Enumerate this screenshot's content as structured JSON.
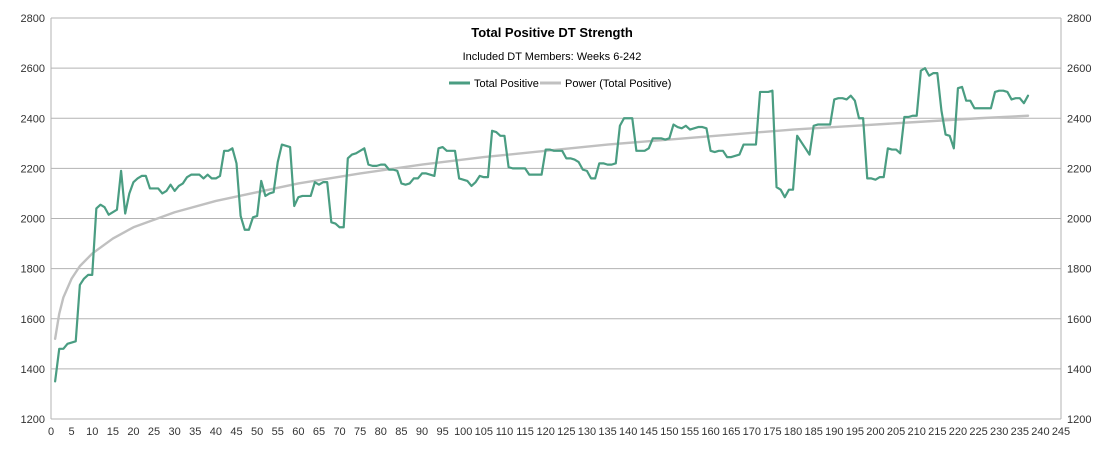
{
  "chart_data": {
    "type": "line",
    "title": "Total Positive DT Strength",
    "subtitle": "Included DT Members: Weeks 6-242",
    "xlabel": "",
    "ylabel": "",
    "xlim": [
      0,
      245
    ],
    "ylim": [
      1200,
      2800
    ],
    "x_ticks": [
      0,
      5,
      10,
      15,
      20,
      25,
      30,
      35,
      40,
      45,
      50,
      55,
      60,
      65,
      70,
      75,
      80,
      85,
      90,
      95,
      100,
      105,
      110,
      115,
      120,
      125,
      130,
      135,
      140,
      145,
      150,
      155,
      160,
      165,
      170,
      175,
      180,
      185,
      190,
      195,
      200,
      205,
      210,
      215,
      220,
      225,
      230,
      235,
      240,
      245
    ],
    "y_ticks": [
      1200,
      1400,
      1600,
      1800,
      2000,
      2200,
      2400,
      2600,
      2800
    ],
    "grid": "horizontal",
    "legend_position": "top-center",
    "series": [
      {
        "name": "Total Positive",
        "color": "#4a9d82",
        "points": [
          [
            1,
            1350
          ],
          [
            2,
            1480
          ],
          [
            3,
            1480
          ],
          [
            4,
            1500
          ],
          [
            5,
            1505
          ],
          [
            6,
            1510
          ],
          [
            7,
            1735
          ],
          [
            8,
            1760
          ],
          [
            9,
            1775
          ],
          [
            10,
            1775
          ],
          [
            11,
            2040
          ],
          [
            12,
            2055
          ],
          [
            13,
            2045
          ],
          [
            14,
            2015
          ],
          [
            15,
            2025
          ],
          [
            16,
            2035
          ],
          [
            17,
            2190
          ],
          [
            18,
            2020
          ],
          [
            19,
            2100
          ],
          [
            20,
            2145
          ],
          [
            21,
            2160
          ],
          [
            22,
            2170
          ],
          [
            23,
            2170
          ],
          [
            24,
            2120
          ],
          [
            25,
            2120
          ],
          [
            26,
            2120
          ],
          [
            27,
            2100
          ],
          [
            28,
            2110
          ],
          [
            29,
            2135
          ],
          [
            30,
            2110
          ],
          [
            31,
            2130
          ],
          [
            32,
            2140
          ],
          [
            33,
            2165
          ],
          [
            34,
            2175
          ],
          [
            35,
            2175
          ],
          [
            36,
            2175
          ],
          [
            37,
            2160
          ],
          [
            38,
            2175
          ],
          [
            39,
            2160
          ],
          [
            40,
            2160
          ],
          [
            41,
            2170
          ],
          [
            42,
            2270
          ],
          [
            43,
            2270
          ],
          [
            44,
            2280
          ],
          [
            45,
            2220
          ],
          [
            46,
            2010
          ],
          [
            47,
            1955
          ],
          [
            48,
            1955
          ],
          [
            49,
            2005
          ],
          [
            50,
            2010
          ],
          [
            51,
            2150
          ],
          [
            52,
            2090
          ],
          [
            53,
            2100
          ],
          [
            54,
            2105
          ],
          [
            55,
            2225
          ],
          [
            56,
            2295
          ],
          [
            57,
            2290
          ],
          [
            58,
            2285
          ],
          [
            59,
            2050
          ],
          [
            60,
            2085
          ],
          [
            61,
            2090
          ],
          [
            62,
            2090
          ],
          [
            63,
            2090
          ],
          [
            64,
            2145
          ],
          [
            65,
            2135
          ],
          [
            66,
            2145
          ],
          [
            67,
            2145
          ],
          [
            68,
            1985
          ],
          [
            69,
            1980
          ],
          [
            70,
            1965
          ],
          [
            71,
            1965
          ],
          [
            72,
            2240
          ],
          [
            73,
            2255
          ],
          [
            74,
            2260
          ],
          [
            75,
            2270
          ],
          [
            76,
            2280
          ],
          [
            77,
            2215
          ],
          [
            78,
            2210
          ],
          [
            79,
            2210
          ],
          [
            80,
            2215
          ],
          [
            81,
            2215
          ],
          [
            82,
            2195
          ],
          [
            83,
            2195
          ],
          [
            84,
            2190
          ],
          [
            85,
            2140
          ],
          [
            86,
            2135
          ],
          [
            87,
            2140
          ],
          [
            88,
            2160
          ],
          [
            89,
            2160
          ],
          [
            90,
            2180
          ],
          [
            91,
            2180
          ],
          [
            92,
            2175
          ],
          [
            93,
            2170
          ],
          [
            94,
            2280
          ],
          [
            95,
            2285
          ],
          [
            96,
            2270
          ],
          [
            97,
            2270
          ],
          [
            98,
            2270
          ],
          [
            99,
            2160
          ],
          [
            100,
            2155
          ],
          [
            101,
            2150
          ],
          [
            102,
            2130
          ],
          [
            103,
            2145
          ],
          [
            104,
            2170
          ],
          [
            105,
            2165
          ],
          [
            106,
            2165
          ],
          [
            107,
            2350
          ],
          [
            108,
            2345
          ],
          [
            109,
            2330
          ],
          [
            110,
            2330
          ],
          [
            111,
            2205
          ],
          [
            112,
            2200
          ],
          [
            113,
            2200
          ],
          [
            114,
            2200
          ],
          [
            115,
            2200
          ],
          [
            116,
            2175
          ],
          [
            117,
            2175
          ],
          [
            118,
            2175
          ],
          [
            119,
            2175
          ],
          [
            120,
            2275
          ],
          [
            121,
            2275
          ],
          [
            122,
            2270
          ],
          [
            123,
            2270
          ],
          [
            124,
            2270
          ],
          [
            125,
            2240
          ],
          [
            126,
            2240
          ],
          [
            127,
            2235
          ],
          [
            128,
            2225
          ],
          [
            129,
            2195
          ],
          [
            130,
            2190
          ],
          [
            131,
            2160
          ],
          [
            132,
            2160
          ],
          [
            133,
            2220
          ],
          [
            134,
            2220
          ],
          [
            135,
            2215
          ],
          [
            136,
            2215
          ],
          [
            137,
            2220
          ],
          [
            138,
            2370
          ],
          [
            139,
            2400
          ],
          [
            140,
            2400
          ],
          [
            141,
            2400
          ],
          [
            142,
            2270
          ],
          [
            143,
            2270
          ],
          [
            144,
            2270
          ],
          [
            145,
            2280
          ],
          [
            146,
            2320
          ],
          [
            147,
            2320
          ],
          [
            148,
            2320
          ],
          [
            149,
            2315
          ],
          [
            150,
            2320
          ],
          [
            151,
            2375
          ],
          [
            152,
            2365
          ],
          [
            153,
            2360
          ],
          [
            154,
            2370
          ],
          [
            155,
            2355
          ],
          [
            156,
            2360
          ],
          [
            157,
            2365
          ],
          [
            158,
            2365
          ],
          [
            159,
            2360
          ],
          [
            160,
            2270
          ],
          [
            161,
            2265
          ],
          [
            162,
            2270
          ],
          [
            163,
            2270
          ],
          [
            164,
            2245
          ],
          [
            165,
            2245
          ],
          [
            166,
            2250
          ],
          [
            167,
            2255
          ],
          [
            168,
            2295
          ],
          [
            169,
            2295
          ],
          [
            170,
            2295
          ],
          [
            171,
            2295
          ],
          [
            172,
            2505
          ],
          [
            173,
            2505
          ],
          [
            174,
            2505
          ],
          [
            175,
            2510
          ],
          [
            176,
            2125
          ],
          [
            177,
            2115
          ],
          [
            178,
            2085
          ],
          [
            179,
            2115
          ],
          [
            180,
            2115
          ],
          [
            181,
            2330
          ],
          [
            182,
            2305
          ],
          [
            183,
            2280
          ],
          [
            184,
            2255
          ],
          [
            185,
            2370
          ],
          [
            186,
            2375
          ],
          [
            187,
            2375
          ],
          [
            188,
            2375
          ],
          [
            189,
            2375
          ],
          [
            190,
            2475
          ],
          [
            191,
            2480
          ],
          [
            192,
            2480
          ],
          [
            193,
            2475
          ],
          [
            194,
            2490
          ],
          [
            195,
            2470
          ],
          [
            196,
            2400
          ],
          [
            197,
            2400
          ],
          [
            198,
            2160
          ],
          [
            199,
            2160
          ],
          [
            200,
            2155
          ],
          [
            201,
            2165
          ],
          [
            202,
            2165
          ],
          [
            203,
            2280
          ],
          [
            204,
            2275
          ],
          [
            205,
            2275
          ],
          [
            206,
            2260
          ],
          [
            207,
            2405
          ],
          [
            208,
            2405
          ],
          [
            209,
            2410
          ],
          [
            210,
            2410
          ],
          [
            211,
            2590
          ],
          [
            212,
            2600
          ],
          [
            213,
            2570
          ],
          [
            214,
            2580
          ],
          [
            215,
            2580
          ],
          [
            216,
            2430
          ],
          [
            217,
            2335
          ],
          [
            218,
            2330
          ],
          [
            219,
            2280
          ],
          [
            220,
            2520
          ],
          [
            221,
            2525
          ],
          [
            222,
            2470
          ],
          [
            223,
            2470
          ],
          [
            224,
            2440
          ],
          [
            225,
            2440
          ],
          [
            226,
            2440
          ],
          [
            227,
            2440
          ],
          [
            228,
            2440
          ],
          [
            229,
            2505
          ],
          [
            230,
            2510
          ],
          [
            231,
            2510
          ],
          [
            232,
            2505
          ],
          [
            233,
            2475
          ],
          [
            234,
            2480
          ],
          [
            235,
            2480
          ],
          [
            236,
            2460
          ],
          [
            237,
            2490
          ]
        ]
      },
      {
        "name": "Power (Total Positive)",
        "color": "#c0c0c0",
        "points": [
          [
            1,
            1520
          ],
          [
            2,
            1620
          ],
          [
            3,
            1685
          ],
          [
            5,
            1760
          ],
          [
            7,
            1810
          ],
          [
            10,
            1860
          ],
          [
            15,
            1920
          ],
          [
            20,
            1965
          ],
          [
            25,
            1995
          ],
          [
            30,
            2025
          ],
          [
            40,
            2070
          ],
          [
            50,
            2105
          ],
          [
            60,
            2140
          ],
          [
            75,
            2180
          ],
          [
            90,
            2215
          ],
          [
            105,
            2245
          ],
          [
            120,
            2270
          ],
          [
            135,
            2295
          ],
          [
            150,
            2315
          ],
          [
            165,
            2335
          ],
          [
            180,
            2355
          ],
          [
            195,
            2370
          ],
          [
            210,
            2385
          ],
          [
            225,
            2400
          ],
          [
            237,
            2410
          ]
        ]
      }
    ]
  }
}
